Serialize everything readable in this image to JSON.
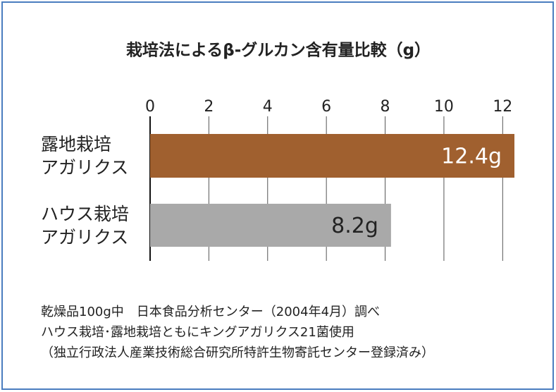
{
  "chart_data": {
    "type": "bar",
    "orientation": "horizontal",
    "title": "栽培法によるβ-グルカン含有量比較（g）",
    "categories": [
      "露地栽培\nアガリクス",
      "ハウス栽培\nアガリクス"
    ],
    "values": [
      12.4,
      8.2
    ],
    "value_labels": [
      "12.4g",
      "8.2g"
    ],
    "colors": [
      "#a0602f",
      "#a9a9a9"
    ],
    "xlim": [
      0,
      12.4
    ],
    "xticks": [
      0,
      2,
      4,
      6,
      8,
      10,
      12
    ],
    "grid": true,
    "notes": [
      "乾燥品100g中　日本食品分析センター（2004年4月）調べ",
      "ハウス栽培･露地栽培ともにキングアガリクス21菌使用",
      "（独立行政法人産業技術総合研究所特許生物寄託センター登録済み）"
    ]
  }
}
